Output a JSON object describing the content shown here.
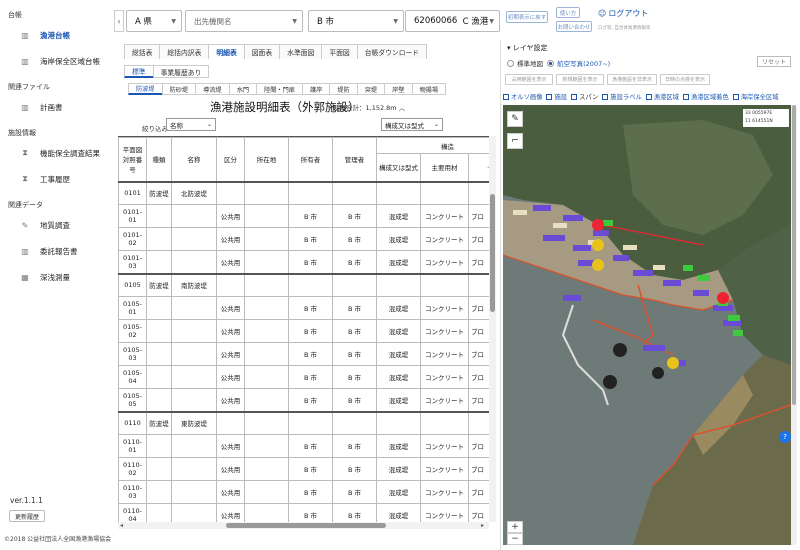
{
  "sidebar": {
    "sections": [
      {
        "title": "台帳",
        "items": [
          {
            "label": "漁港台帳",
            "icon": "book-icon",
            "active": true
          },
          {
            "label": "海岸保全区域台帳",
            "icon": "book-icon",
            "active": false
          }
        ]
      },
      {
        "title": "関連ファイル",
        "items": [
          {
            "label": "計画書",
            "icon": "book-icon",
            "active": false
          }
        ]
      },
      {
        "title": "施設情報",
        "items": [
          {
            "label": "機能保全調査結果",
            "icon": "hourglass-icon",
            "active": false
          },
          {
            "label": "工事履歴",
            "icon": "hourglass-icon",
            "active": false
          }
        ]
      },
      {
        "title": "関連データ",
        "items": [
          {
            "label": "地質調査",
            "icon": "wrench-icon",
            "active": false
          },
          {
            "label": "委託報告書",
            "icon": "book-icon",
            "active": false
          },
          {
            "label": "深浅測量",
            "icon": "grid-icon",
            "active": false
          }
        ]
      }
    ],
    "version": "ver.1.1.1",
    "history_button": "更新履歴",
    "copyright": "©2018 公益社団法人全国漁港漁場協会"
  },
  "header": {
    "collapse_icon": "chevron-left-icon",
    "prefecture": "A 県",
    "organization": "出先機関名",
    "city": "B 市",
    "port_code": "62060066",
    "port_name": "C 漁港",
    "btn_back_initial": "初期表示に戻す",
    "btn_usage": "使い方",
    "btn_contact": "お問い合わせ",
    "logout": "ログアウト",
    "note": "ログ等, 自治体漁港情報等"
  },
  "tabs": {
    "main": [
      "総括表",
      "総括内訳表",
      "明細表",
      "図面表",
      "水準面図",
      "平面図",
      "台帳ダウンロード"
    ],
    "main_active": 2,
    "sub": [
      "標準",
      "事業履歴あり"
    ],
    "sub_active": 0,
    "facility": [
      "防波堤",
      "防砂堤",
      "導流堤",
      "水門",
      "陸閘・門扉",
      "護岸",
      "堤防",
      "突堤",
      "岸壁",
      "物揚場"
    ],
    "facility_active": 0
  },
  "sheet": {
    "title": "漁港施設明細表（外郭施設）",
    "total": "延概合計：1,152.8m",
    "collapse_icon": "chevron-up-icon",
    "filter_label": "絞り込み",
    "filter_value": "名称",
    "format_value": "構成又は型式"
  },
  "table": {
    "headers": {
      "planno": "平面図対照番号",
      "kind": "種類",
      "name": "名称",
      "category": "区分",
      "location": "所在地",
      "owner": "所有者",
      "manager": "管理者",
      "structure": "構造",
      "struct_type": "構成又は型式",
      "material": "主要用材",
      "other": "その"
    },
    "rows": [
      {
        "planno": "0101",
        "kind": "防波堤",
        "name": "北防波堤",
        "category": "",
        "location": "",
        "owner": "",
        "manager": "",
        "type": "",
        "material": "",
        "other": "",
        "group": true
      },
      {
        "planno": "0101-01",
        "kind": "",
        "name": "",
        "category": "公共用",
        "location": "",
        "owner": "B 市",
        "manager": "B 市",
        "type": "混成堤",
        "material": "コンクリート",
        "other": "ブロ"
      },
      {
        "planno": "0101-02",
        "kind": "",
        "name": "",
        "category": "公共用",
        "location": "",
        "owner": "B 市",
        "manager": "B 市",
        "type": "混成堤",
        "material": "コンクリート",
        "other": "ブロ"
      },
      {
        "planno": "0101-03",
        "kind": "",
        "name": "",
        "category": "公共用",
        "location": "",
        "owner": "B 市",
        "manager": "B 市",
        "type": "混成堤",
        "material": "コンクリート",
        "other": "ブロ"
      },
      {
        "planno": "0105",
        "kind": "防波堤",
        "name": "南防波堤",
        "category": "",
        "location": "",
        "owner": "",
        "manager": "",
        "type": "",
        "material": "",
        "other": "",
        "group": true
      },
      {
        "planno": "0105-01",
        "kind": "",
        "name": "",
        "category": "公共用",
        "location": "",
        "owner": "B 市",
        "manager": "B 市",
        "type": "混成堤",
        "material": "コンクリート",
        "other": "ブロ"
      },
      {
        "planno": "0105-02",
        "kind": "",
        "name": "",
        "category": "公共用",
        "location": "",
        "owner": "B 市",
        "manager": "B 市",
        "type": "混成堤",
        "material": "コンクリート",
        "other": "ブロ"
      },
      {
        "planno": "0105-03",
        "kind": "",
        "name": "",
        "category": "公共用",
        "location": "",
        "owner": "B 市",
        "manager": "B 市",
        "type": "混成堤",
        "material": "コンクリート",
        "other": "ブロ"
      },
      {
        "planno": "0105-04",
        "kind": "",
        "name": "",
        "category": "公共用",
        "location": "",
        "owner": "B 市",
        "manager": "B 市",
        "type": "混成堤",
        "material": "コンクリート",
        "other": "ブロ"
      },
      {
        "planno": "0105-05",
        "kind": "",
        "name": "",
        "category": "公共用",
        "location": "",
        "owner": "B 市",
        "manager": "B 市",
        "type": "混成堤",
        "material": "コンクリート",
        "other": "ブロ"
      },
      {
        "planno": "0110",
        "kind": "防波堤",
        "name": "東防波堤",
        "category": "",
        "location": "",
        "owner": "",
        "manager": "",
        "type": "",
        "material": "",
        "other": "",
        "group": true
      },
      {
        "planno": "0110-01",
        "kind": "",
        "name": "",
        "category": "公共用",
        "location": "",
        "owner": "B 市",
        "manager": "B 市",
        "type": "混成堤",
        "material": "コンクリート",
        "other": "ブロ"
      },
      {
        "planno": "0110-02",
        "kind": "",
        "name": "",
        "category": "公共用",
        "location": "",
        "owner": "B 市",
        "manager": "B 市",
        "type": "混成堤",
        "material": "コンクリート",
        "other": "ブロ"
      },
      {
        "planno": "0110-03",
        "kind": "",
        "name": "",
        "category": "公共用",
        "location": "",
        "owner": "B 市",
        "manager": "B 市",
        "type": "混成堤",
        "material": "コンクリート",
        "other": "ブロ"
      },
      {
        "planno": "0110-04",
        "kind": "",
        "name": "",
        "category": "公共用",
        "location": "",
        "owner": "B 市",
        "manager": "B 市",
        "type": "混成堤",
        "material": "コンクリート",
        "other": "ブロ"
      }
    ]
  },
  "map_panel": {
    "layer_header": "レイヤ設定",
    "base_standard": "標準地図",
    "base_aerial": "航空写真(2007~)",
    "reset": "リセット",
    "gray_buttons": [
      "占用範囲を表示",
      "新規範囲を表示",
      "漁港施設を非表示",
      "日時の点検を表示"
    ],
    "checks": [
      "オルソ画像",
      "施設",
      "スパン",
      "施設ラベル",
      "漁港区域",
      "漁港区域着色",
      "海岸保全区域"
    ],
    "coords": [
      "33 005597E",
      "11 614551N"
    ],
    "zoom_in": "+",
    "zoom_out": "−",
    "help": "?",
    "colors": {
      "accent": "#1a56b3",
      "sea": "#6d7a78",
      "land": "#4a5e3f",
      "boundary": "#d9532f"
    }
  }
}
